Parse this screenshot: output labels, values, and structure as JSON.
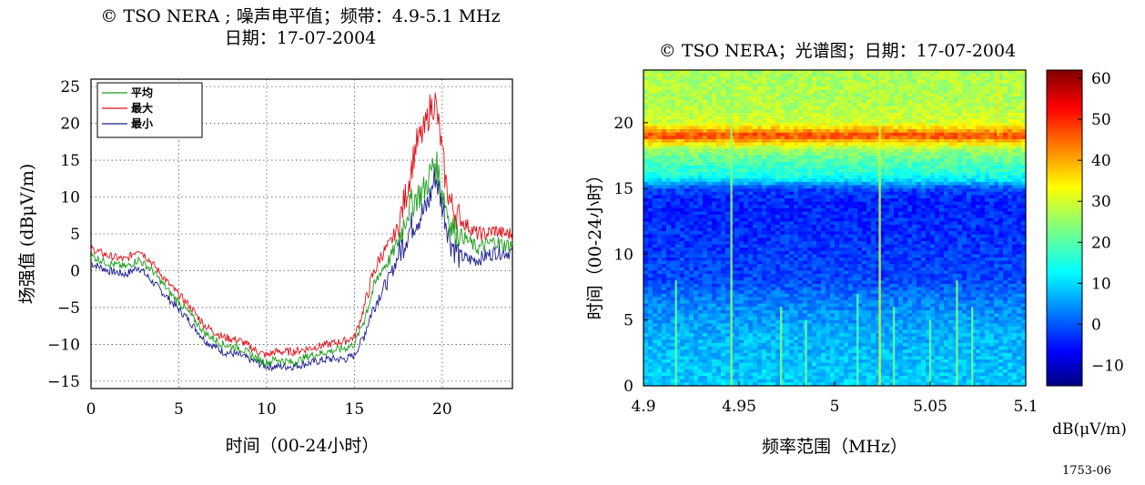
{
  "figure_ref": "1753-06",
  "chart_data": [
    {
      "type": "line",
      "title_line1": "© TSO NERA ; 噪声电平值；频带：4.9-5.1 MHz",
      "title_line2": "日期：17-07-2004",
      "xlabel": "时间（00-24小时）",
      "ylabel": "场强值 (dBμV/m)",
      "xlim": [
        0,
        24
      ],
      "ylim": [
        -16,
        26
      ],
      "xticks": [
        0,
        5,
        10,
        15,
        20
      ],
      "yticks": [
        -15,
        -10,
        -5,
        0,
        5,
        10,
        15,
        20,
        25
      ],
      "ytick_labels": [
        "−15",
        "−10",
        "−5",
        "0",
        "5",
        "10",
        "15",
        "20",
        "25"
      ],
      "grid": true,
      "legend_position": "top-left",
      "x": [
        0,
        1,
        2,
        2.7,
        3.5,
        4.5,
        5.5,
        6.5,
        7.5,
        8.5,
        9.5,
        10,
        10.5,
        11.5,
        12.5,
        13.5,
        14.5,
        15,
        15.5,
        16,
        16.5,
        17,
        17.5,
        18,
        18.5,
        19,
        19.3,
        19.6,
        19.9,
        20.2,
        20.5,
        21,
        21.5,
        22,
        22.5,
        23,
        23.5,
        24
      ],
      "series": [
        {
          "name": "平均",
          "color": "#1a9e1a",
          "values": [
            2,
            1,
            0.5,
            1.5,
            0,
            -3,
            -5.5,
            -8.5,
            -10,
            -10.5,
            -12,
            -12.5,
            -12,
            -12.5,
            -11.5,
            -11,
            -10.5,
            -10,
            -7,
            -3,
            0,
            1.5,
            4,
            8,
            10,
            11,
            13,
            15,
            12,
            9,
            6,
            5,
            4,
            3,
            3.5,
            4,
            3.5,
            3.5
          ]
        },
        {
          "name": "最大",
          "color": "#e0131b",
          "values": [
            3,
            2,
            1.5,
            3,
            1,
            -2,
            -4.5,
            -7.5,
            -9,
            -9.5,
            -11,
            -11.5,
            -11,
            -11,
            -10.5,
            -10,
            -9.5,
            -9,
            -5.5,
            -1,
            2,
            3.5,
            6,
            11,
            17,
            19,
            22,
            23,
            18,
            12,
            9,
            7,
            6,
            5,
            5,
            5.5,
            5,
            5
          ]
        },
        {
          "name": "最小",
          "color": "#1c1c8f",
          "values": [
            1,
            0,
            -0.5,
            0.5,
            -1.5,
            -4,
            -6.5,
            -9.5,
            -11,
            -11.5,
            -12.5,
            -13,
            -13,
            -13,
            -12.5,
            -12,
            -12,
            -11.5,
            -9,
            -5.5,
            -3,
            -1,
            2,
            5,
            7,
            8,
            10,
            13,
            10,
            7,
            4,
            2,
            1.5,
            1.5,
            2,
            2.5,
            2.5,
            2.5
          ]
        }
      ]
    },
    {
      "type": "heatmap",
      "title": "© TSO NERA；光谱图；日期：17-07-2004",
      "xlabel": "频率范围（MHz）",
      "ylabel": "时间（00-24小时）",
      "xlim": [
        4.9,
        5.1
      ],
      "ylim": [
        0,
        24
      ],
      "xticks": [
        4.9,
        4.95,
        5,
        5.05,
        5.1
      ],
      "xtick_labels": [
        "4.9",
        "4.95",
        "5",
        "5.05",
        "5.1"
      ],
      "yticks": [
        0,
        5,
        10,
        15,
        20
      ],
      "colorbar_label": "dB(μV/m)",
      "colorbar_range": [
        -15,
        62
      ],
      "colorbar_ticks": [
        -10,
        0,
        10,
        20,
        30,
        40,
        50,
        60
      ],
      "colorbar_tick_labels": [
        "−10",
        "0",
        "10",
        "20",
        "30",
        "40",
        "50",
        "60"
      ],
      "colormap": "jet",
      "time_profile": {
        "hours": [
          0,
          2,
          4,
          6,
          7,
          8,
          10,
          12,
          14,
          15,
          15.5,
          16,
          17,
          18,
          18.5,
          19,
          19.5,
          20,
          21,
          22,
          24
        ],
        "level_dB": [
          10,
          9,
          8,
          5,
          3,
          0,
          -1,
          -2,
          -3,
          0,
          10,
          16,
          20,
          26,
          36,
          48,
          38,
          30,
          28,
          27,
          27
        ]
      },
      "vertical_lines": [
        {
          "freq_mhz": 4.946,
          "level_dB": 25,
          "from_h": 0,
          "to_h": 24
        },
        {
          "freq_mhz": 5.0236,
          "level_dB": 30,
          "from_h": 0,
          "to_h": 24
        },
        {
          "freq_mhz": 5.0855,
          "level_dB": 35,
          "from_h": 19,
          "to_h": 24
        },
        {
          "freq_mhz": 4.917,
          "level_dB": 22,
          "from_h": 0,
          "to_h": 8
        },
        {
          "freq_mhz": 4.972,
          "level_dB": 24,
          "from_h": 0,
          "to_h": 6
        },
        {
          "freq_mhz": 4.985,
          "level_dB": 22,
          "from_h": 0,
          "to_h": 5
        },
        {
          "freq_mhz": 5.012,
          "level_dB": 20,
          "from_h": 0,
          "to_h": 7
        },
        {
          "freq_mhz": 5.031,
          "level_dB": 22,
          "from_h": 0,
          "to_h": 6
        },
        {
          "freq_mhz": 5.05,
          "level_dB": 22,
          "from_h": 0,
          "to_h": 5
        },
        {
          "freq_mhz": 5.064,
          "level_dB": 24,
          "from_h": 0,
          "to_h": 8
        },
        {
          "freq_mhz": 5.072,
          "level_dB": 22,
          "from_h": 0,
          "to_h": 6
        }
      ]
    }
  ]
}
